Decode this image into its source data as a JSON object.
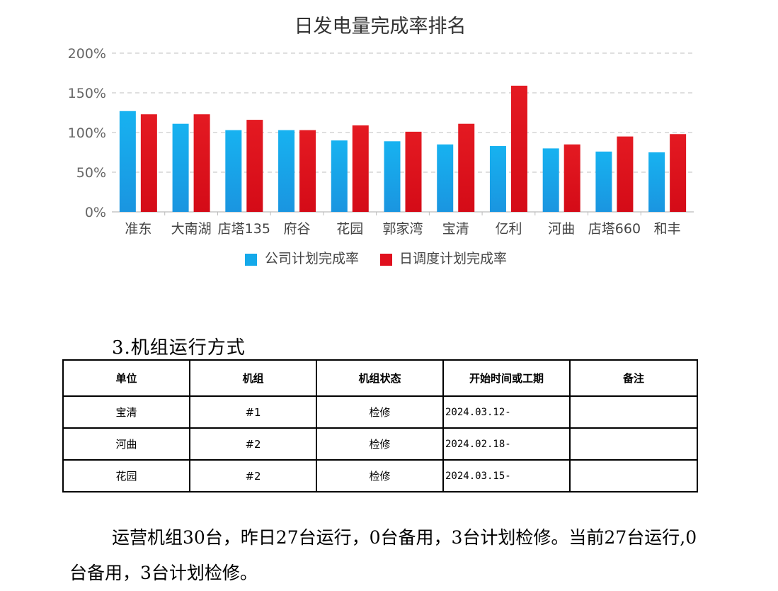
{
  "chart_data": {
    "type": "bar",
    "title": "日发电量完成率排名",
    "categories": [
      "准东",
      "大南湖",
      "店塔135",
      "府谷",
      "花园",
      "郭家湾",
      "宝清",
      "亿利",
      "河曲",
      "店塔660",
      "和丰"
    ],
    "series": [
      {
        "name": "公司计划完成率",
        "color": "#14a9ea",
        "values": [
          127,
          111,
          103,
          103,
          90,
          89,
          85,
          83,
          80,
          76,
          75
        ]
      },
      {
        "name": "日调度计划完成率",
        "color": "#e0101e",
        "values": [
          123,
          123,
          116,
          103,
          109,
          101,
          111,
          159,
          85,
          95,
          98
        ]
      }
    ],
    "yticks": [
      "0%",
      "50%",
      "100%",
      "150%",
      "200%"
    ],
    "ylim": [
      0,
      200
    ],
    "grid": true,
    "legend_position": "bottom"
  },
  "section": {
    "heading": "3.机组运行方式"
  },
  "table": {
    "headers": [
      "单位",
      "机组",
      "机组状态",
      "开始时间或工期",
      "备注"
    ],
    "rows": [
      [
        "宝清",
        "#1",
        "检修",
        "2024.03.12-",
        ""
      ],
      [
        "河曲",
        "#2",
        "检修",
        "2024.02.18-",
        ""
      ],
      [
        "花园",
        "#2",
        "检修",
        "2024.03.15-",
        ""
      ]
    ]
  },
  "summary": "运营机组30台，昨日27台运行，0台备用，3台计划检修。当前27台运行,0台备用，3台计划检修。"
}
